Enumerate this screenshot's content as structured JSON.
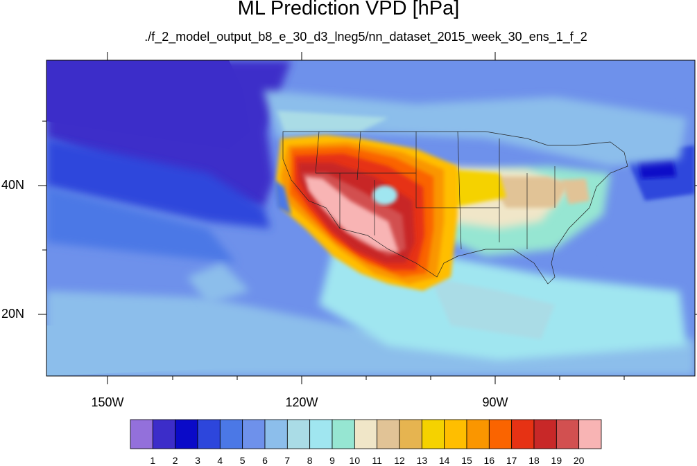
{
  "title": "ML Prediction VPD [hPa]",
  "subtitle": "./f_2_model_output_b8_e_30_d3_lneg5/nn_dataset_2015_week_30_ens_1_f_2",
  "lat_labels": [
    "40N",
    "20N"
  ],
  "lon_labels": [
    "150W",
    "120W",
    "90W"
  ],
  "colorbar": {
    "labels": [
      "1",
      "2",
      "3",
      "4",
      "5",
      "6",
      "7",
      "8",
      "9",
      "10",
      "11",
      "12",
      "13",
      "14",
      "15",
      "16",
      "17",
      "18",
      "19",
      "20"
    ],
    "colors": [
      "#9370DB",
      "#3C2DC9",
      "#0A0AC8",
      "#2D46DC",
      "#4B78E6",
      "#6E91EB",
      "#8CBEEB",
      "#AADCE6",
      "#A0E6F0",
      "#96E6D2",
      "#F0E6C8",
      "#E1C396",
      "#E6B450",
      "#F5D200",
      "#FFBE00",
      "#FA9600",
      "#FA6400",
      "#E63214",
      "#C82828",
      "#D25050",
      "#F8B4B4"
    ]
  }
}
